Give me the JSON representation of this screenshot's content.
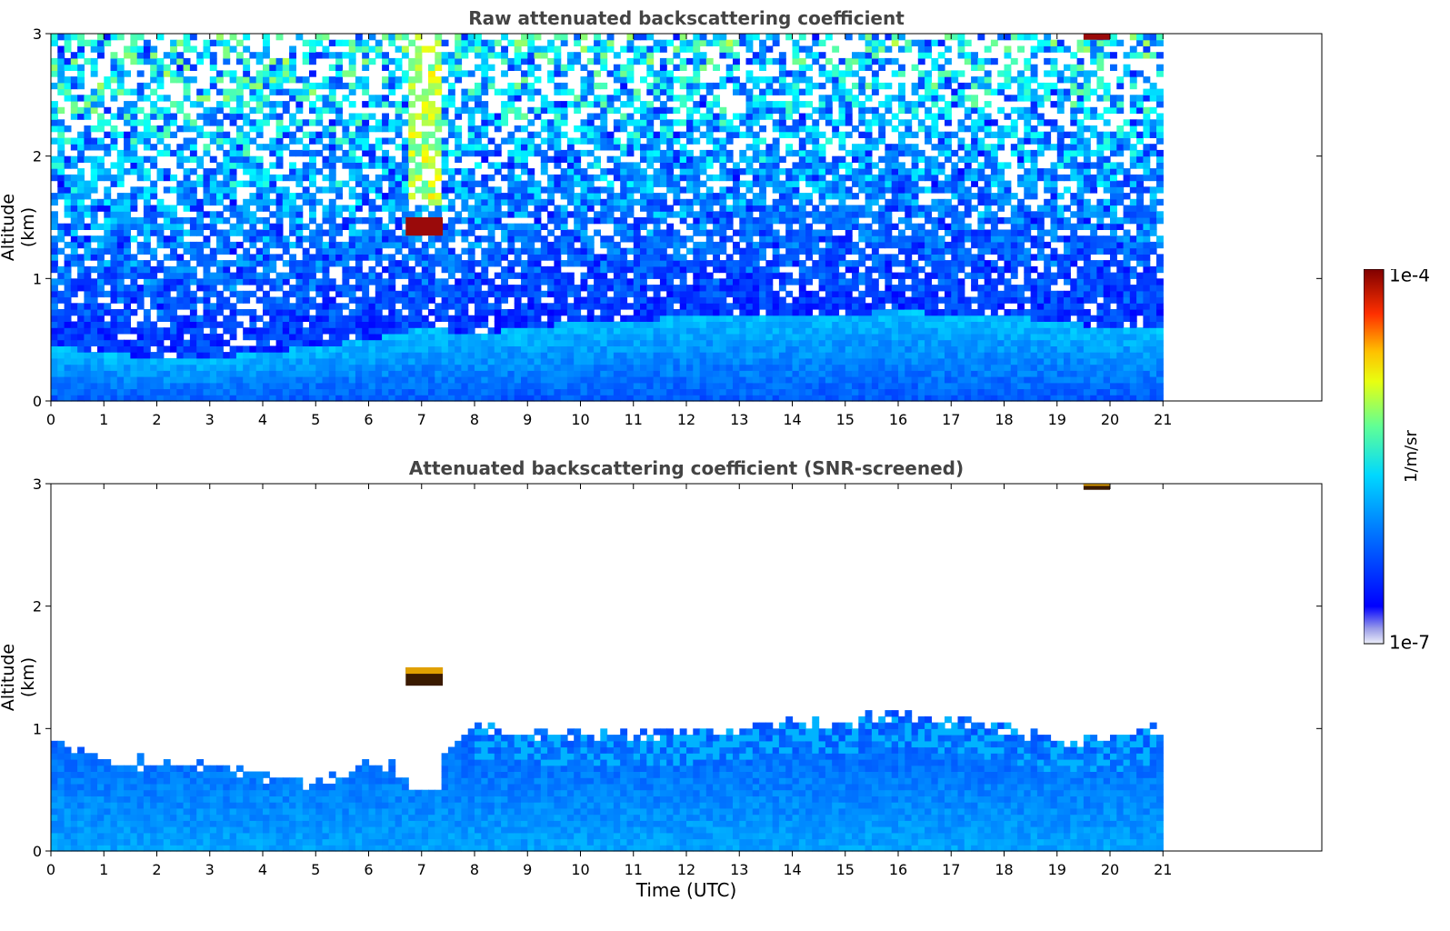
{
  "chart_data": [
    {
      "type": "heatmap",
      "title": "Raw attenuated backscattering coefficient",
      "xlabel": "",
      "ylabel": "Altitude (km)",
      "xlim": [
        0,
        24
      ],
      "ylim": [
        0,
        3
      ],
      "x_ticks": [
        0,
        1,
        2,
        3,
        4,
        5,
        6,
        7,
        8,
        9,
        10,
        11,
        12,
        13,
        14,
        15,
        16,
        17,
        18,
        19,
        20,
        21
      ],
      "y_ticks": [
        0,
        1,
        2,
        3
      ],
      "data_end_hour": 21,
      "features": [
        {
          "kind": "cloud",
          "x": [
            6.7,
            7.4
          ],
          "y": [
            1.35,
            1.5
          ],
          "level": "1e-4"
        },
        {
          "kind": "cloud",
          "x": [
            19.5,
            20.0
          ],
          "y": [
            2.95,
            3.0
          ],
          "level": "1e-4"
        }
      ],
      "boundary_layer_top_km": [
        0.45,
        0.4,
        0.35,
        0.35,
        0.4,
        0.45,
        0.5,
        0.6,
        0.55,
        0.6,
        0.65,
        0.65,
        0.7,
        0.7,
        0.7,
        0.7,
        0.75,
        0.7,
        0.7,
        0.65,
        0.6,
        0.6
      ]
    },
    {
      "type": "heatmap",
      "title": "Attenuated backscattering coefficient (SNR-screened)",
      "xlabel": "Time (UTC)",
      "ylabel": "Altitude (km)",
      "xlim": [
        0,
        24
      ],
      "ylim": [
        0,
        3
      ],
      "x_ticks": [
        0,
        1,
        2,
        3,
        4,
        5,
        6,
        7,
        8,
        9,
        10,
        11,
        12,
        13,
        14,
        15,
        16,
        17,
        18,
        19,
        20,
        21
      ],
      "y_ticks": [
        0,
        1,
        2,
        3
      ],
      "data_end_hour": 21,
      "signal_top_km": [
        0.95,
        0.75,
        0.7,
        0.7,
        0.62,
        0.55,
        0.72,
        0.6,
        1.0,
        0.98,
        0.95,
        0.95,
        0.97,
        1.0,
        1.05,
        1.05,
        1.12,
        1.05,
        1.0,
        0.9,
        0.9,
        1.0
      ],
      "features": [
        {
          "kind": "cloud",
          "x": [
            6.7,
            7.4
          ],
          "y": [
            1.35,
            1.5
          ],
          "level": "1e-4"
        },
        {
          "kind": "cloud",
          "x": [
            19.5,
            20.0
          ],
          "y": [
            2.95,
            3.0
          ],
          "level": "1e-4"
        }
      ]
    }
  ],
  "colorbar": {
    "max_label": "1e-4",
    "min_label": "1e-7",
    "label": "1/m/sr",
    "colormap": "jet"
  }
}
